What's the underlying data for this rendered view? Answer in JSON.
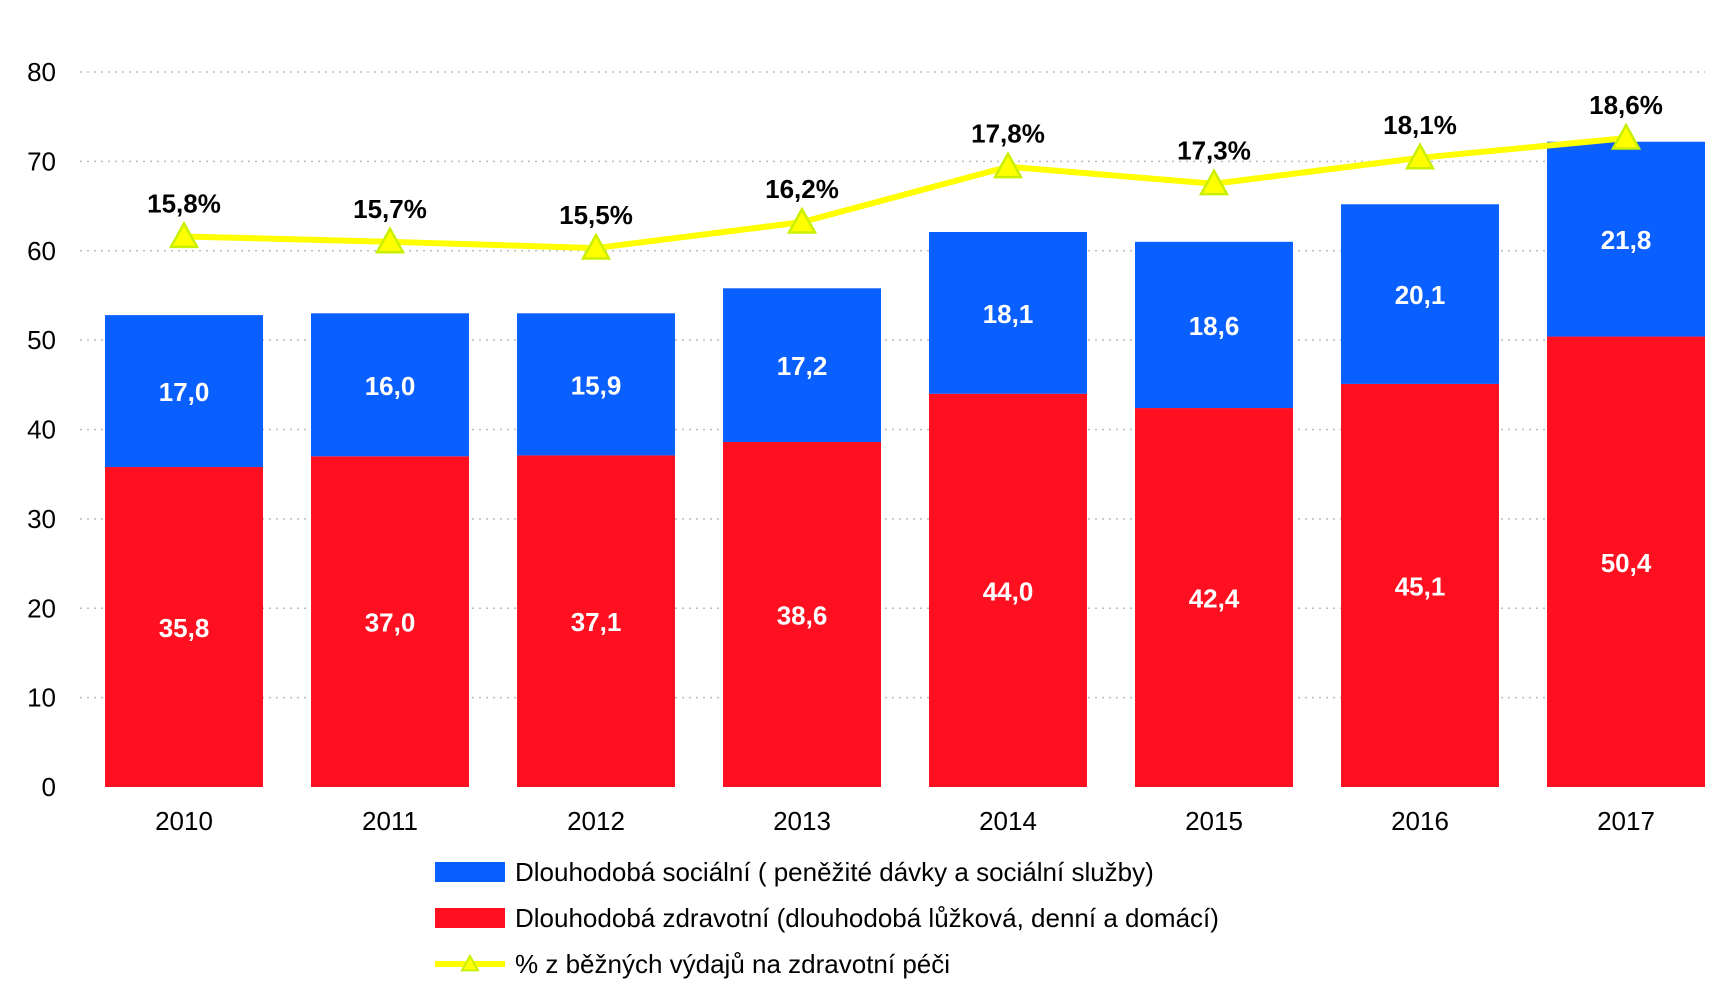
{
  "chart_data": {
    "type": "bar",
    "stacked": true,
    "categories": [
      "2010",
      "2011",
      "2012",
      "2013",
      "2014",
      "2015",
      "2016",
      "2017"
    ],
    "ylim": [
      0,
      80
    ],
    "yticks": [
      0,
      10,
      20,
      30,
      40,
      50,
      60,
      70,
      80
    ],
    "grid": "dotted horizontal",
    "series": [
      {
        "name": "Dlouhodobá zdravotní (dlouhodobá lůžková, denní a domácí)",
        "color": "#ff1020",
        "values": [
          35.8,
          37.0,
          37.1,
          38.6,
          44.0,
          42.4,
          45.1,
          50.4
        ],
        "labels": [
          "35,8",
          "37,0",
          "37,1",
          "38,6",
          "44,0",
          "42,4",
          "45,1",
          "50,4"
        ]
      },
      {
        "name": "Dlouhodobá sociální ( peněžité dávky a sociální služby)",
        "color": "#0a5fff",
        "values": [
          17.0,
          16.0,
          15.9,
          17.2,
          18.1,
          18.6,
          20.1,
          21.8
        ],
        "labels": [
          "17,0",
          "16,0",
          "15,9",
          "17,2",
          "18,1",
          "18,6",
          "20,1",
          "21,8"
        ]
      }
    ],
    "line_series": {
      "name": "% z běžných výdajů na zdravotní péči",
      "color": "#ffff00",
      "marker_color": "#c8f000",
      "marker": "triangle",
      "values": [
        15.8,
        15.7,
        15.5,
        16.2,
        17.8,
        17.3,
        18.1,
        18.6
      ],
      "labels": [
        "15,8%",
        "15,7%",
        "15,5%",
        "16,2%",
        "17,8%",
        "17,3%",
        "18,1%",
        "18,6%"
      ],
      "plotted_on_left_axis_as": [
        61.6,
        61.0,
        60.3,
        63.2,
        69.4,
        67.5,
        70.4,
        72.6
      ]
    },
    "legend_position": "bottom-center",
    "legend_order": [
      1,
      0,
      "line"
    ]
  }
}
